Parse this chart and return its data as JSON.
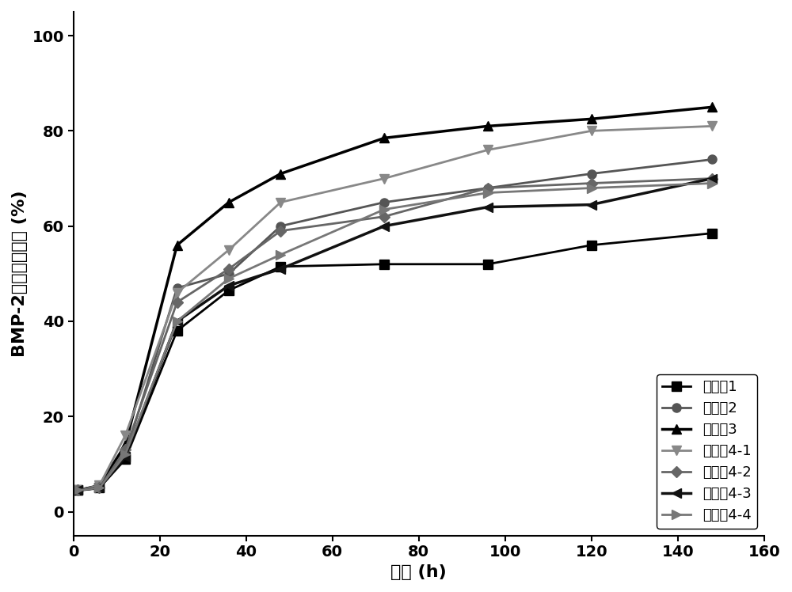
{
  "title": "",
  "xlabel": "时间 (h)",
  "ylabel": "BMP-2累积释放曲线 (%)",
  "xlim": [
    0,
    160
  ],
  "ylim": [
    -5,
    105
  ],
  "xticks": [
    0,
    20,
    40,
    60,
    80,
    100,
    120,
    140,
    160
  ],
  "yticks": [
    0,
    20,
    40,
    60,
    80,
    100
  ],
  "series": [
    {
      "label": "实施例1",
      "color": "#000000",
      "linewidth": 2.0,
      "marker": "s",
      "markersize": 8,
      "x": [
        1,
        6,
        12,
        24,
        36,
        48,
        72,
        96,
        120,
        148
      ],
      "y": [
        4.5,
        5.0,
        11.0,
        38.0,
        46.5,
        51.5,
        52.0,
        52.0,
        56.0,
        58.5
      ]
    },
    {
      "label": "实施例2",
      "color": "#555555",
      "linewidth": 2.0,
      "marker": "o",
      "markersize": 8,
      "x": [
        1,
        6,
        12,
        24,
        36,
        48,
        72,
        96,
        120,
        148
      ],
      "y": [
        4.5,
        5.5,
        12.0,
        47.0,
        50.0,
        60.0,
        65.0,
        68.0,
        71.0,
        74.0
      ]
    },
    {
      "label": "实施例3",
      "color": "#000000",
      "linewidth": 2.5,
      "marker": "^",
      "markersize": 9,
      "x": [
        1,
        6,
        12,
        24,
        36,
        48,
        72,
        96,
        120,
        148
      ],
      "y": [
        4.5,
        5.5,
        14.0,
        56.0,
        65.0,
        71.0,
        78.5,
        81.0,
        82.5,
        85.0
      ]
    },
    {
      "label": "实施例4-1",
      "color": "#888888",
      "linewidth": 2.0,
      "marker": "v",
      "markersize": 8,
      "x": [
        1,
        6,
        12,
        24,
        36,
        48,
        72,
        96,
        120,
        148
      ],
      "y": [
        4.5,
        5.5,
        16.0,
        46.0,
        55.0,
        65.0,
        70.0,
        76.0,
        80.0,
        81.0
      ]
    },
    {
      "label": "实施例4-2",
      "color": "#666666",
      "linewidth": 2.0,
      "marker": "D",
      "markersize": 7,
      "x": [
        1,
        6,
        12,
        24,
        36,
        48,
        72,
        96,
        120,
        148
      ],
      "y": [
        4.5,
        5.0,
        13.0,
        44.0,
        51.0,
        59.0,
        62.0,
        68.0,
        69.0,
        70.0
      ]
    },
    {
      "label": "实施例4-3",
      "color": "#111111",
      "linewidth": 2.5,
      "marker": "<",
      "markersize": 9,
      "x": [
        1,
        6,
        12,
        24,
        36,
        48,
        72,
        96,
        120,
        148
      ],
      "y": [
        4.5,
        5.0,
        11.5,
        40.0,
        47.5,
        51.0,
        60.0,
        64.0,
        64.5,
        70.0
      ]
    },
    {
      "label": "实施例4-4",
      "color": "#777777",
      "linewidth": 2.0,
      "marker": ">",
      "markersize": 8,
      "x": [
        1,
        6,
        12,
        24,
        36,
        48,
        72,
        96,
        120,
        148
      ],
      "y": [
        4.5,
        5.0,
        12.0,
        40.0,
        49.0,
        54.0,
        63.5,
        67.0,
        68.0,
        69.0
      ]
    }
  ],
  "background_color": "#ffffff",
  "legend_loc": "lower right",
  "legend_fontsize": 13,
  "axis_fontsize": 16,
  "tick_fontsize": 14
}
